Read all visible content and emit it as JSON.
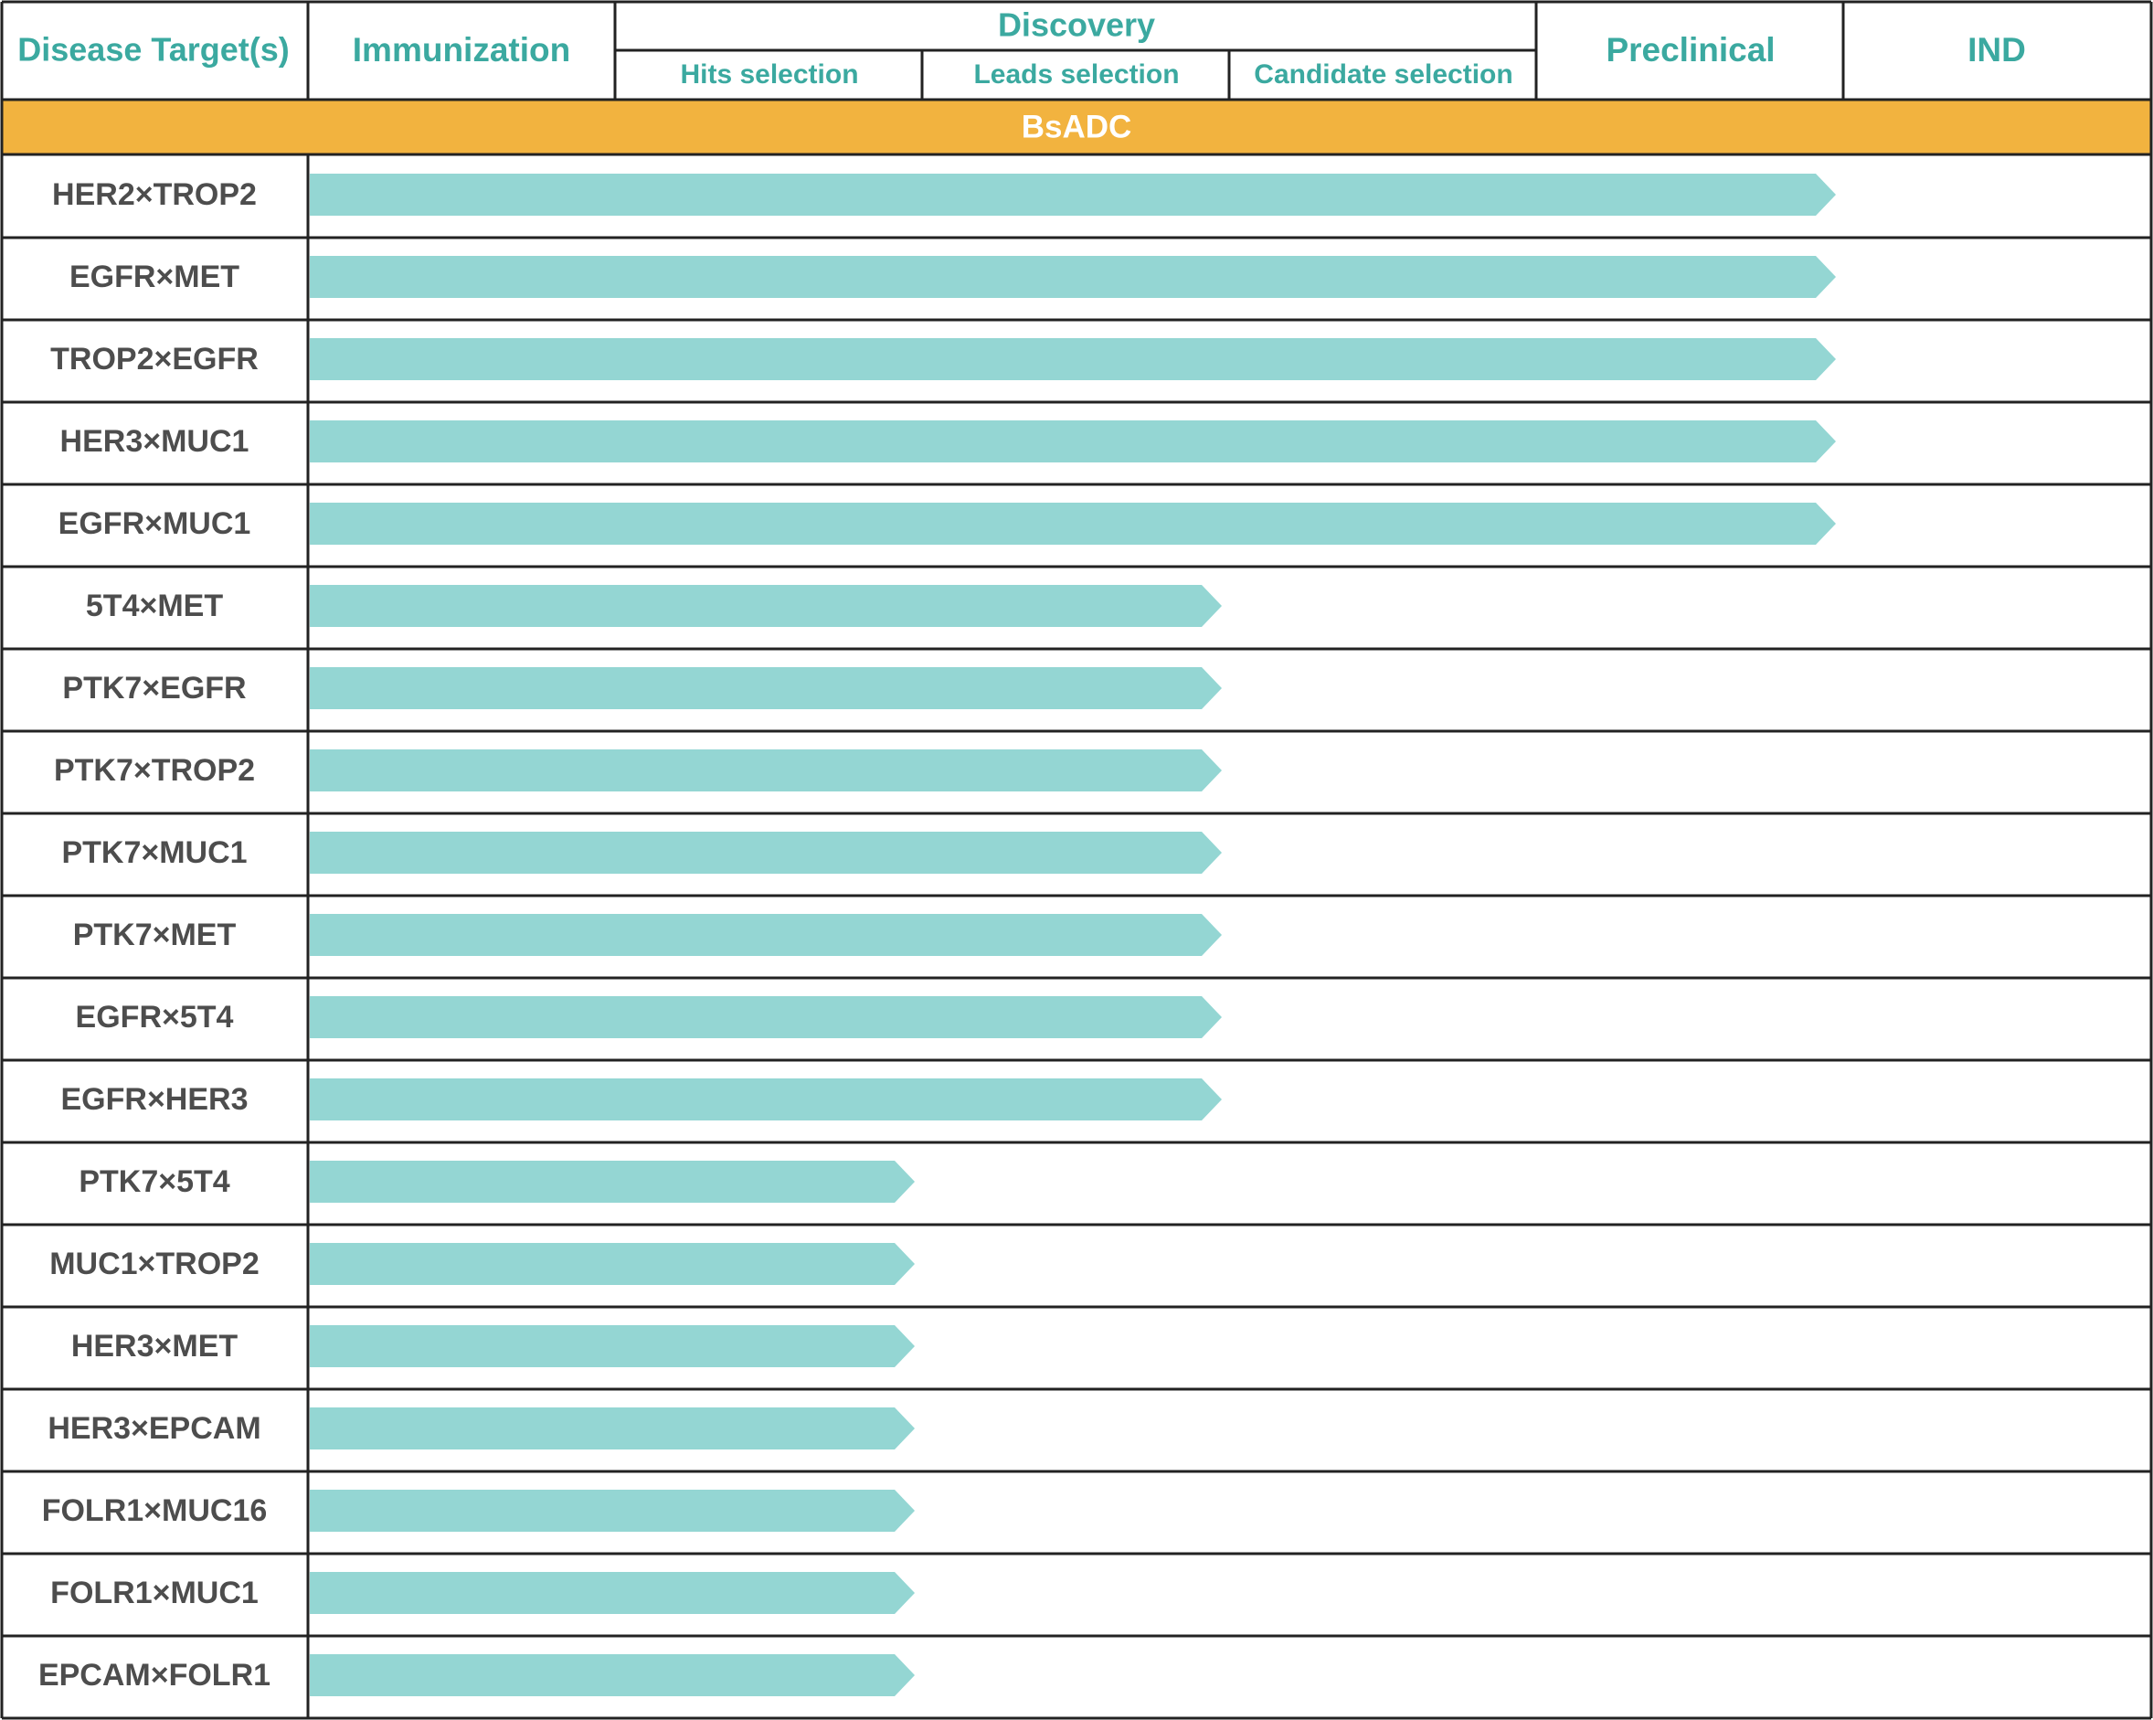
{
  "colors": {
    "header_text": "#3ba9a0",
    "label_text": "#4d4d4d",
    "band": "#f2b33f",
    "band_text": "#ffffff",
    "bar": "#94d6d3",
    "grid": "#222222"
  },
  "header": {
    "target_col": "Disease Target(s)",
    "stages": [
      "Immunization",
      "Discovery",
      "Preclinical",
      "IND"
    ],
    "discovery_substages": [
      "Hits selection",
      "Leads selection",
      "Candidate selection"
    ]
  },
  "chart_data": {
    "type": "bar",
    "orientation": "horizontal",
    "group": "BsADC",
    "stage_scale": [
      "Immunization",
      "Hits selection",
      "Leads selection",
      "Candidate selection",
      "Preclinical",
      "IND"
    ],
    "xlim": [
      0,
      5
    ],
    "categories": [
      "HER2×TROP2",
      "EGFR×MET",
      "TROP2×EGFR",
      "HER3×MUC1",
      "EGFR×MUC1",
      "5T4×MET",
      "PTK7×EGFR",
      "PTK7×TROP2",
      "PTK7×MUC1",
      "PTK7×MET",
      "EGFR×5T4",
      "EGFR×HER3",
      "PTK7×5T4",
      "MUC1×TROP2",
      "HER3×MET",
      "HER3×EPCAM",
      "FOLR1×MUC16",
      "FOLR1×MUC1",
      "EPCAM×FOLR1"
    ],
    "values": [
      5.0,
      5.0,
      5.0,
      5.0,
      5.0,
      3.0,
      3.0,
      3.0,
      3.0,
      3.0,
      3.0,
      3.0,
      2.0,
      2.0,
      2.0,
      2.0,
      2.0,
      2.0,
      2.0
    ]
  }
}
